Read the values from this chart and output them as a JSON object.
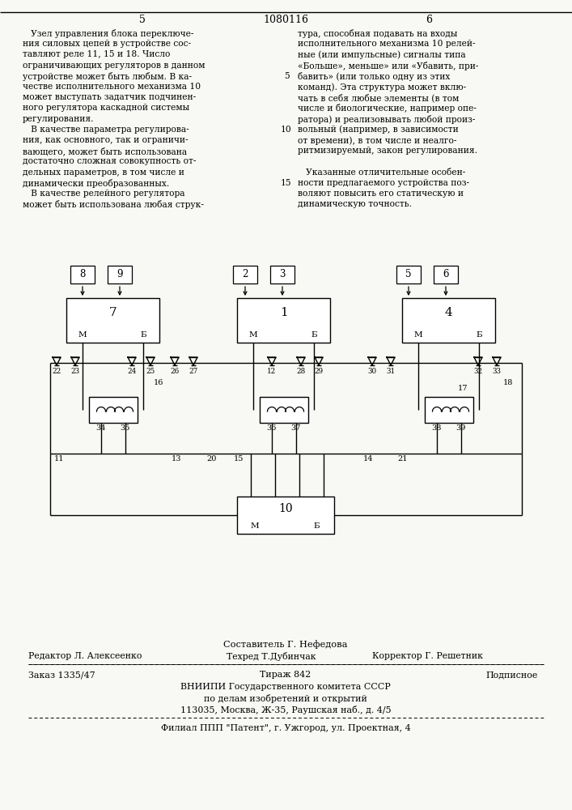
{
  "bg_color": "#f8f8f5",
  "text_color": "#111111",
  "patent_number": "1080116",
  "page_left": "5",
  "page_right": "6",
  "left_col": [
    "   Узел управления блока переключе-",
    "ния силовых цепей в устройстве сос-",
    "тавляют реле 11, 15 и 18. Число",
    "ограничивающих регуляторов в данном",
    "устройстве может быть любым. В ка-",
    "честве исполнительного механизма 10",
    "может выступать задатчик подчинен-",
    "ного регулятора каскадной системы",
    "регулирования.",
    "   В качестве параметра регулирова-",
    "ния, как основного, так и ограничи-",
    "вающего, может быть использована",
    "достаточно сложная совокупность от-",
    "дельных параметров, в том числе и",
    "динамически преобразованных.",
    "   В качестве релейного регулятора",
    "может быть использована любая струк-"
  ],
  "right_col": [
    "тура, способная подавать на входы",
    "исполнительного механизма 10 релей-",
    "ные (или импульсные) сигналы типа",
    "«Больше», меньше» или «Убавить, при-",
    "бавить» (или только одну из этих",
    "команд). Эта структура может вклю-",
    "чать в себя любые элементы (в том",
    "числе и биологические, например опе-",
    "ратора) и реализовывать любой произ-",
    "вольный (например, в зависимости",
    "от времени), в том числе и неалго-",
    "ритмизируемый, закон регулирования.",
    "",
    "   Указанные отличительные особен-",
    "ности предлагаемого устройства поз-",
    "воляют повысить его статическую и",
    "динамическую точность."
  ],
  "margin_nums": [
    {
      "n": "5",
      "row": 4
    },
    {
      "n": "10",
      "row": 9
    },
    {
      "n": "15",
      "row": 14
    }
  ]
}
